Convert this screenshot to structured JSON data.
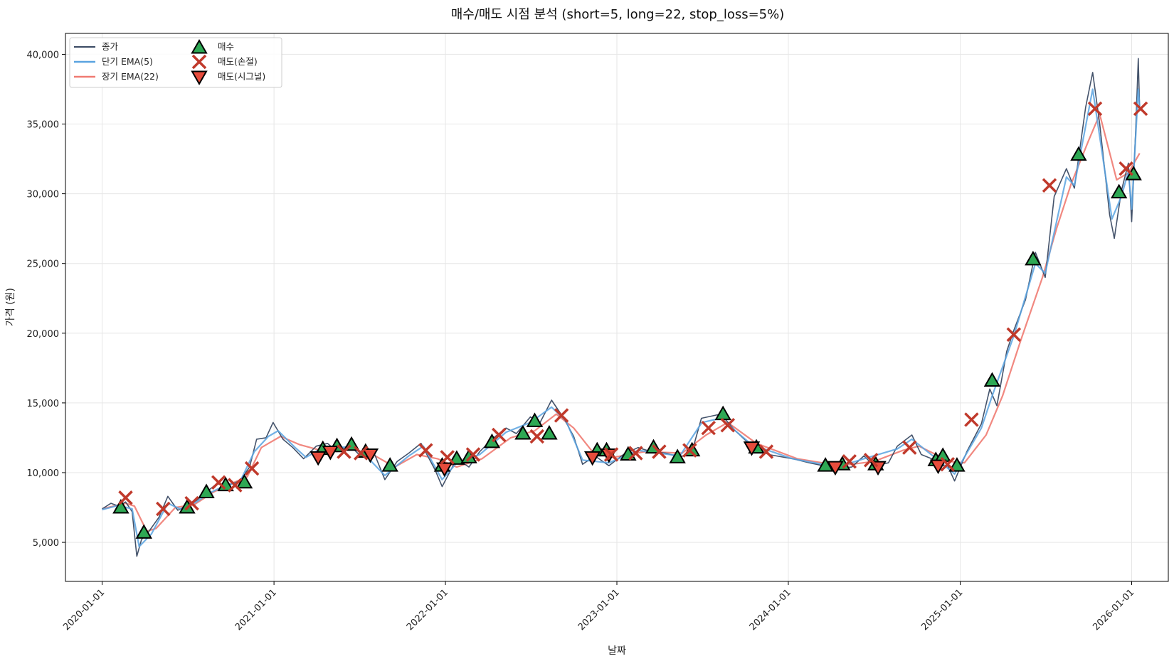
{
  "chart_data": {
    "type": "line",
    "title": "매수/매도 시점 분석 (short=5, long=22, stop_loss=5%)",
    "xlabel": "날짜",
    "ylabel": "가격 (원)",
    "xlim": [
      "2019-10-15",
      "2026-03-20"
    ],
    "ylim": [
      2200,
      41500
    ],
    "yticks": [
      5000,
      10000,
      15000,
      20000,
      25000,
      30000,
      35000,
      40000
    ],
    "ytick_labels": [
      "5,000",
      "10,000",
      "15,000",
      "20,000",
      "25,000",
      "30,000",
      "35,000",
      "40,000"
    ],
    "xticks": [
      "2020-01-01",
      "2021-01-01",
      "2022-01-01",
      "2023-01-01",
      "2024-01-01",
      "2025-01-01",
      "2026-01-01"
    ],
    "grid": true,
    "legend_position": "top-left",
    "colors": {
      "close": "#3a4a63",
      "ema_short": "#5aa3e0",
      "ema_long": "#f07b72",
      "buy": "#2ea854",
      "sell_stop": "#c0392b",
      "sell_signal": "#e74c3c"
    },
    "legend": {
      "close": "종가",
      "ema_short": "단기 EMA(5)",
      "ema_long": "장기 EMA(22)",
      "buy": "매수",
      "sell_stop": "매도(손절)",
      "sell_signal": "매도(시그널)"
    },
    "series": [
      {
        "name": "종가",
        "role": "close",
        "points": [
          [
            "2020-01-01",
            7400
          ],
          [
            "2020-01-20",
            7800
          ],
          [
            "2020-02-05",
            7600
          ],
          [
            "2020-02-20",
            7900
          ],
          [
            "2020-03-05",
            7200
          ],
          [
            "2020-03-15",
            4000
          ],
          [
            "2020-03-25",
            5200
          ],
          [
            "2020-04-10",
            5800
          ],
          [
            "2020-05-01",
            6800
          ],
          [
            "2020-05-20",
            8300
          ],
          [
            "2020-06-10",
            7300
          ],
          [
            "2020-07-01",
            7600
          ],
          [
            "2020-07-20",
            8000
          ],
          [
            "2020-08-10",
            8600
          ],
          [
            "2020-09-01",
            9200
          ],
          [
            "2020-09-25",
            9100
          ],
          [
            "2020-10-20",
            9400
          ],
          [
            "2020-11-10",
            10400
          ],
          [
            "2020-11-25",
            12400
          ],
          [
            "2020-12-15",
            12500
          ],
          [
            "2020-12-30",
            13600
          ],
          [
            "2021-01-20",
            12400
          ],
          [
            "2021-02-10",
            11800
          ],
          [
            "2021-03-05",
            11000
          ],
          [
            "2021-04-01",
            11900
          ],
          [
            "2021-04-25",
            12100
          ],
          [
            "2021-05-15",
            11500
          ],
          [
            "2021-06-10",
            12000
          ],
          [
            "2021-07-01",
            11300
          ],
          [
            "2021-08-01",
            11500
          ],
          [
            "2021-08-25",
            9500
          ],
          [
            "2021-09-20",
            10800
          ],
          [
            "2021-10-15",
            11400
          ],
          [
            "2021-11-10",
            12100
          ],
          [
            "2021-12-10",
            10200
          ],
          [
            "2021-12-25",
            9000
          ],
          [
            "2022-01-25",
            11000
          ],
          [
            "2022-02-20",
            10400
          ],
          [
            "2022-03-15",
            11500
          ],
          [
            "2022-04-10",
            12400
          ],
          [
            "2022-05-10",
            13200
          ],
          [
            "2022-06-01",
            12800
          ],
          [
            "2022-07-01",
            14000
          ],
          [
            "2022-07-20",
            13500
          ],
          [
            "2022-08-15",
            15200
          ],
          [
            "2022-09-10",
            13900
          ],
          [
            "2022-10-01",
            12600
          ],
          [
            "2022-10-20",
            10600
          ],
          [
            "2022-11-15",
            11200
          ],
          [
            "2022-12-15",
            10500
          ],
          [
            "2023-01-15",
            11300
          ],
          [
            "2023-02-15",
            11800
          ],
          [
            "2023-03-15",
            11500
          ],
          [
            "2023-04-15",
            11400
          ],
          [
            "2023-05-15",
            11100
          ],
          [
            "2023-06-10",
            11500
          ],
          [
            "2023-06-30",
            13900
          ],
          [
            "2023-08-10",
            14200
          ],
          [
            "2023-09-10",
            13000
          ],
          [
            "2023-10-15",
            11900
          ],
          [
            "2023-11-20",
            11300
          ],
          [
            "2024-01-10",
            11000
          ],
          [
            "2024-02-15",
            10700
          ],
          [
            "2024-03-15",
            10500
          ],
          [
            "2024-04-15",
            10300
          ],
          [
            "2024-05-15",
            10400
          ],
          [
            "2024-06-10",
            11200
          ],
          [
            "2024-07-01",
            10500
          ],
          [
            "2024-08-01",
            10700
          ],
          [
            "2024-08-20",
            11900
          ],
          [
            "2024-09-20",
            12700
          ],
          [
            "2024-10-10",
            11300
          ],
          [
            "2024-11-01",
            11000
          ],
          [
            "2024-12-01",
            10800
          ],
          [
            "2024-12-20",
            9400
          ],
          [
            "2025-01-15",
            11500
          ],
          [
            "2025-02-15",
            13500
          ],
          [
            "2025-03-05",
            16000
          ],
          [
            "2025-03-20",
            14800
          ],
          [
            "2025-04-10",
            18700
          ],
          [
            "2025-04-25",
            20200
          ],
          [
            "2025-05-20",
            22400
          ],
          [
            "2025-06-10",
            25800
          ],
          [
            "2025-07-01",
            24000
          ],
          [
            "2025-07-20",
            29800
          ],
          [
            "2025-08-15",
            31800
          ],
          [
            "2025-09-01",
            30400
          ],
          [
            "2025-09-25",
            36200
          ],
          [
            "2025-10-10",
            38700
          ],
          [
            "2025-10-25",
            35000
          ],
          [
            "2025-11-15",
            28500
          ],
          [
            "2025-11-25",
            26800
          ],
          [
            "2025-12-10",
            30200
          ],
          [
            "2025-12-25",
            32200
          ],
          [
            "2026-01-01",
            28000
          ],
          [
            "2026-01-10",
            35000
          ],
          [
            "2026-01-15",
            39700
          ],
          [
            "2026-01-18",
            36000
          ]
        ]
      },
      {
        "name": "단기 EMA(5)",
        "role": "ema_short",
        "points": [
          [
            "2020-01-01",
            7350
          ],
          [
            "2020-02-05",
            7650
          ],
          [
            "2020-03-05",
            7400
          ],
          [
            "2020-03-20",
            4700
          ],
          [
            "2020-04-15",
            5600
          ],
          [
            "2020-05-20",
            7800
          ],
          [
            "2020-06-15",
            7400
          ],
          [
            "2020-07-20",
            7900
          ],
          [
            "2020-08-15",
            8500
          ],
          [
            "2020-09-20",
            9100
          ],
          [
            "2020-10-20",
            9300
          ],
          [
            "2020-11-20",
            11500
          ],
          [
            "2020-12-20",
            12600
          ],
          [
            "2021-01-10",
            13000
          ],
          [
            "2021-02-15",
            11800
          ],
          [
            "2021-03-10",
            11100
          ],
          [
            "2021-04-20",
            11900
          ],
          [
            "2021-06-10",
            11800
          ],
          [
            "2021-07-10",
            11400
          ],
          [
            "2021-08-25",
            9800
          ],
          [
            "2021-10-15",
            11200
          ],
          [
            "2021-11-15",
            11900
          ],
          [
            "2021-12-25",
            9500
          ],
          [
            "2022-01-25",
            10700
          ],
          [
            "2022-03-15",
            11300
          ],
          [
            "2022-05-10",
            12900
          ],
          [
            "2022-07-01",
            13600
          ],
          [
            "2022-08-15",
            14700
          ],
          [
            "2022-09-15",
            13700
          ],
          [
            "2022-10-20",
            10900
          ],
          [
            "2022-12-15",
            10700
          ],
          [
            "2023-02-15",
            11600
          ],
          [
            "2023-05-15",
            11200
          ],
          [
            "2023-07-01",
            13600
          ],
          [
            "2023-08-10",
            13900
          ],
          [
            "2023-10-15",
            12000
          ],
          [
            "2024-01-10",
            11000
          ],
          [
            "2024-04-15",
            10400
          ],
          [
            "2024-06-10",
            11000
          ],
          [
            "2024-08-20",
            11700
          ],
          [
            "2024-09-20",
            12400
          ],
          [
            "2024-11-15",
            10900
          ],
          [
            "2024-12-20",
            9900
          ],
          [
            "2025-02-15",
            13200
          ],
          [
            "2025-03-10",
            15500
          ],
          [
            "2025-04-25",
            19800
          ],
          [
            "2025-06-10",
            25000
          ],
          [
            "2025-07-01",
            24300
          ],
          [
            "2025-08-15",
            31200
          ],
          [
            "2025-09-01",
            30600
          ],
          [
            "2025-10-10",
            37500
          ],
          [
            "2025-11-20",
            28200
          ],
          [
            "2025-12-10",
            29800
          ],
          [
            "2025-12-25",
            31600
          ],
          [
            "2026-01-01",
            28900
          ],
          [
            "2026-01-15",
            37500
          ],
          [
            "2026-01-18",
            36300
          ]
        ]
      },
      {
        "name": "장기 EMA(22)",
        "role": "ema_long",
        "points": [
          [
            "2020-01-01",
            7400
          ],
          [
            "2020-02-20",
            7800
          ],
          [
            "2020-03-10",
            7600
          ],
          [
            "2020-04-05",
            5800
          ],
          [
            "2020-04-25",
            6000
          ],
          [
            "2020-06-05",
            7500
          ],
          [
            "2020-07-15",
            7700
          ],
          [
            "2020-08-25",
            8600
          ],
          [
            "2020-10-01",
            9200
          ],
          [
            "2020-11-05",
            9700
          ],
          [
            "2020-12-05",
            11800
          ],
          [
            "2021-01-15",
            12600
          ],
          [
            "2021-02-25",
            12000
          ],
          [
            "2021-04-10",
            11600
          ],
          [
            "2021-06-10",
            11700
          ],
          [
            "2021-07-25",
            11400
          ],
          [
            "2021-09-15",
            10400
          ],
          [
            "2021-11-01",
            11300
          ],
          [
            "2021-12-15",
            11000
          ],
          [
            "2022-01-25",
            10400
          ],
          [
            "2022-03-20",
            11000
          ],
          [
            "2022-05-20",
            12500
          ],
          [
            "2022-07-10",
            13000
          ],
          [
            "2022-08-25",
            14200
          ],
          [
            "2022-10-01",
            13200
          ],
          [
            "2022-11-10",
            11500
          ],
          [
            "2022-12-25",
            11100
          ],
          [
            "2023-03-01",
            11500
          ],
          [
            "2023-05-20",
            11400
          ],
          [
            "2023-07-10",
            12700
          ],
          [
            "2023-08-25",
            13600
          ],
          [
            "2023-10-25",
            12100
          ],
          [
            "2024-01-20",
            11000
          ],
          [
            "2024-04-20",
            10500
          ],
          [
            "2024-07-01",
            10800
          ],
          [
            "2024-09-01",
            11600
          ],
          [
            "2024-10-05",
            11900
          ],
          [
            "2024-12-10",
            10800
          ],
          [
            "2025-01-10",
            10700
          ],
          [
            "2025-02-25",
            12700
          ],
          [
            "2025-04-01",
            15500
          ],
          [
            "2025-05-10",
            19500
          ],
          [
            "2025-06-25",
            24000
          ],
          [
            "2025-07-25",
            27500
          ],
          [
            "2025-08-25",
            30700
          ],
          [
            "2025-10-01",
            33800
          ],
          [
            "2025-10-25",
            35700
          ],
          [
            "2025-11-30",
            31000
          ],
          [
            "2025-12-25",
            31500
          ],
          [
            "2026-01-18",
            32900
          ]
        ]
      }
    ],
    "buy_signals": [
      [
        "2020-02-10",
        7500
      ],
      [
        "2020-03-30",
        5700
      ],
      [
        "2020-06-30",
        7500
      ],
      [
        "2020-08-10",
        8600
      ],
      [
        "2020-09-20",
        9100
      ],
      [
        "2020-10-30",
        9300
      ],
      [
        "2021-04-15",
        11700
      ],
      [
        "2021-05-15",
        11900
      ],
      [
        "2021-06-15",
        12000
      ],
      [
        "2021-07-15",
        11500
      ],
      [
        "2021-09-05",
        10500
      ],
      [
        "2021-12-25",
        10500
      ],
      [
        "2022-01-25",
        11000
      ],
      [
        "2022-02-20",
        11100
      ],
      [
        "2022-04-10",
        12200
      ],
      [
        "2022-06-15",
        12800
      ],
      [
        "2022-07-10",
        13700
      ],
      [
        "2022-08-10",
        12800
      ],
      [
        "2022-11-20",
        11600
      ],
      [
        "2022-12-10",
        11600
      ],
      [
        "2023-01-25",
        11300
      ],
      [
        "2023-03-20",
        11800
      ],
      [
        "2023-05-10",
        11100
      ],
      [
        "2023-06-10",
        11600
      ],
      [
        "2023-08-15",
        14200
      ],
      [
        "2023-10-25",
        11800
      ],
      [
        "2024-03-20",
        10500
      ],
      [
        "2024-04-25",
        10600
      ],
      [
        "2024-07-05",
        10600
      ],
      [
        "2024-11-10",
        10900
      ],
      [
        "2024-11-25",
        11200
      ],
      [
        "2024-12-25",
        10500
      ],
      [
        "2025-03-10",
        16600
      ],
      [
        "2025-06-05",
        25300
      ],
      [
        "2025-09-10",
        32800
      ],
      [
        "2025-12-05",
        30100
      ],
      [
        "2026-01-05",
        31400
      ]
    ],
    "sell_stop_signals": [
      [
        "2020-02-20",
        8200
      ],
      [
        "2020-05-10",
        7400
      ],
      [
        "2020-07-10",
        7800
      ],
      [
        "2020-09-05",
        9300
      ],
      [
        "2020-10-10",
        9100
      ],
      [
        "2020-11-15",
        10300
      ],
      [
        "2021-05-30",
        11500
      ],
      [
        "2021-07-05",
        11400
      ],
      [
        "2021-11-20",
        11600
      ],
      [
        "2022-01-05",
        11100
      ],
      [
        "2022-03-01",
        11300
      ],
      [
        "2022-04-25",
        12700
      ],
      [
        "2022-07-15",
        12600
      ],
      [
        "2022-09-05",
        14100
      ],
      [
        "2022-12-20",
        11300
      ],
      [
        "2023-02-10",
        11400
      ],
      [
        "2023-04-01",
        11500
      ],
      [
        "2023-06-05",
        11600
      ],
      [
        "2023-07-15",
        13200
      ],
      [
        "2023-08-25",
        13400
      ],
      [
        "2023-11-15",
        11500
      ],
      [
        "2024-05-10",
        10800
      ],
      [
        "2024-06-25",
        10900
      ],
      [
        "2024-09-15",
        11800
      ],
      [
        "2024-12-05",
        10600
      ],
      [
        "2025-01-25",
        13800
      ],
      [
        "2025-04-25",
        19900
      ],
      [
        "2025-07-10",
        30600
      ],
      [
        "2025-10-15",
        36100
      ],
      [
        "2025-12-20",
        31800
      ],
      [
        "2026-01-20",
        36100
      ]
    ],
    "sell_signal_signals": [
      [
        "2021-04-05",
        11100
      ],
      [
        "2021-05-01",
        11500
      ],
      [
        "2021-07-25",
        11300
      ],
      [
        "2021-12-30",
        10300
      ],
      [
        "2022-11-10",
        11100
      ],
      [
        "2022-12-15",
        11300
      ],
      [
        "2023-10-15",
        11800
      ],
      [
        "2024-04-10",
        10400
      ],
      [
        "2024-07-10",
        10400
      ],
      [
        "2024-11-15",
        10500
      ]
    ]
  }
}
